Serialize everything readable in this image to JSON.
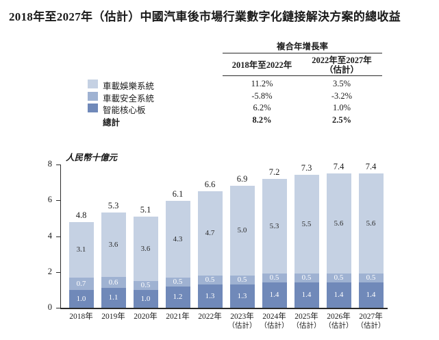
{
  "page": {
    "title": "2018年至2027年（估計）中國汽車後市場行業數字化鏈接解決方案的總收益"
  },
  "cagr_table": {
    "title": "複合年增長率",
    "columns": [
      {
        "line1": "2018年至2022年",
        "line2": ""
      },
      {
        "line1": "2022年至2027年",
        "line2": "（估計）"
      }
    ],
    "rows": [
      {
        "label": "車載娛樂系統",
        "swatch": "#c5d1e3",
        "values": [
          "11.2%",
          "3.5%"
        ],
        "bold": false
      },
      {
        "label": "車載安全系統",
        "swatch": "#9fb2d2",
        "values": [
          "-5.8%",
          "-3.2%"
        ],
        "bold": false
      },
      {
        "label": "智能核心板",
        "swatch": "#7089b9",
        "values": [
          "6.2%",
          "1.0%"
        ],
        "bold": false
      },
      {
        "label": "總計",
        "swatch": null,
        "values": [
          "8.2%",
          "2.5%"
        ],
        "bold": true
      }
    ]
  },
  "chart_data": {
    "type": "bar",
    "stacked": true,
    "title": "2018年至2027年（估計）中國汽車後市場行業數字化鏈接解決方案的總收益",
    "ylabel": "人民幣十億元",
    "ylim": [
      0,
      8
    ],
    "yticks": [
      0,
      2,
      4,
      6,
      8
    ],
    "grid": false,
    "legend_position": "top-left",
    "categories": [
      [
        "2018年"
      ],
      [
        "2019年"
      ],
      [
        "2020年"
      ],
      [
        "2021年"
      ],
      [
        "2022年"
      ],
      [
        "2023年",
        "（估計）"
      ],
      [
        "2024年",
        "（估計）"
      ],
      [
        "2025年",
        "（估計）"
      ],
      [
        "2026年",
        "（估計）"
      ],
      [
        "2027年",
        "（估計）"
      ]
    ],
    "series": [
      {
        "name": "智能核心板",
        "color": "#7089b9",
        "label_color": "#ffffff",
        "values": [
          1.0,
          1.1,
          1.0,
          1.2,
          1.3,
          1.3,
          1.4,
          1.4,
          1.4,
          1.4
        ]
      },
      {
        "name": "車載安全系統",
        "color": "#9fb2d2",
        "label_color": "#ffffff",
        "values": [
          0.7,
          0.6,
          0.5,
          0.5,
          0.5,
          0.5,
          0.5,
          0.5,
          0.5,
          0.5
        ]
      },
      {
        "name": "車載娛樂系統",
        "color": "#c5d1e3",
        "label_color": "#2b2b2b",
        "values": [
          3.1,
          3.6,
          3.6,
          4.3,
          4.7,
          5.0,
          5.3,
          5.5,
          5.6,
          5.6
        ]
      }
    ],
    "totals": [
      4.8,
      5.3,
      5.1,
      6.1,
      6.6,
      6.9,
      7.2,
      7.3,
      7.4,
      7.4
    ]
  }
}
